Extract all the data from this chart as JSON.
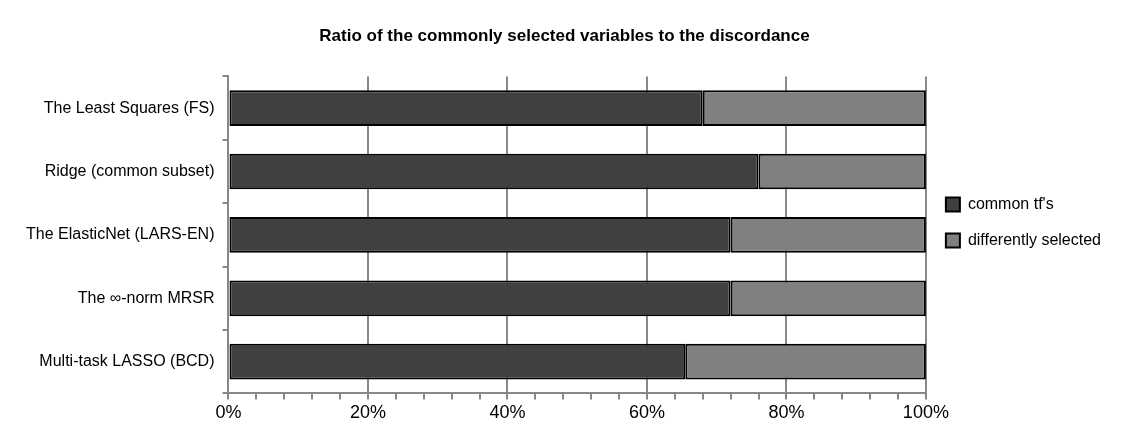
{
  "chart_data": {
    "type": "bar",
    "title": "Ratio of the commonly selected variables to the discordance",
    "orientation": "horizontal",
    "stacked": true,
    "categories": [
      "The Least Squares (FS)",
      "Ridge (common subset)",
      "The ElasticNet (LARS-EN)",
      "The ∞-norm MRSR",
      "Multi-task LASSO (BCD)"
    ],
    "series": [
      {
        "name": "common tf's",
        "color": "#404040",
        "values": [
          68,
          76,
          72,
          72,
          65.5
        ]
      },
      {
        "name": "differently selected",
        "color": "#808080",
        "values": [
          32,
          24,
          28,
          28,
          34.5
        ]
      }
    ],
    "xlim": [
      0,
      100
    ],
    "xticks": [
      {
        "value": 0,
        "label": "0%"
      },
      {
        "value": 4,
        "label": null
      },
      {
        "value": 8,
        "label": null
      },
      {
        "value": 12,
        "label": null
      },
      {
        "value": 16,
        "label": null
      },
      {
        "value": 20,
        "label": "20%"
      },
      {
        "value": 24,
        "label": null
      },
      {
        "value": 28,
        "label": null
      },
      {
        "value": 32,
        "label": null
      },
      {
        "value": 36,
        "label": null
      },
      {
        "value": 40,
        "label": "40%"
      },
      {
        "value": 44,
        "label": null
      },
      {
        "value": 48,
        "label": null
      },
      {
        "value": 52,
        "label": null
      },
      {
        "value": 56,
        "label": null
      },
      {
        "value": 60,
        "label": "60%"
      },
      {
        "value": 64,
        "label": null
      },
      {
        "value": 68,
        "label": null
      },
      {
        "value": 72,
        "label": null
      },
      {
        "value": 76,
        "label": null
      },
      {
        "value": 80,
        "label": "80%"
      },
      {
        "value": 84,
        "label": null
      },
      {
        "value": 88,
        "label": null
      },
      {
        "value": 92,
        "label": null
      },
      {
        "value": 96,
        "label": null
      },
      {
        "value": 100,
        "label": "100%"
      }
    ],
    "grid": "x",
    "legend": "right"
  }
}
